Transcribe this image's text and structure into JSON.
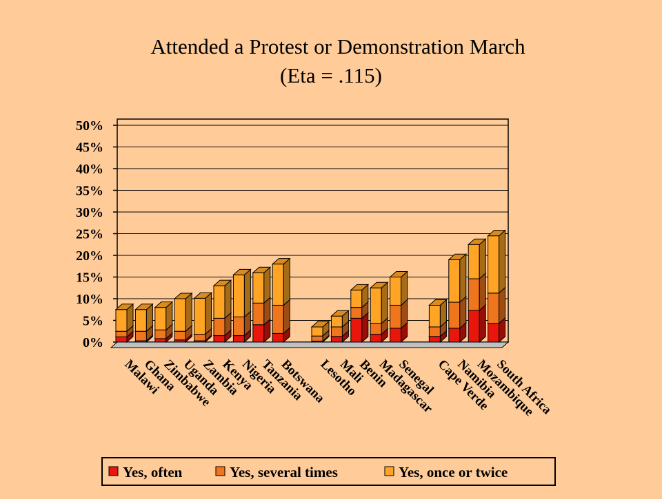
{
  "chart_data": {
    "type": "bar3d_stacked",
    "title": "Attended a Protest or Demonstration March",
    "subtitle": "(Eta = .115)",
    "categories": [
      "Malawi",
      "Ghana",
      "Zimbabwe",
      "Uganda",
      "Zambia",
      "Kenya",
      "Nigeria",
      "Tanzania",
      "Botswana",
      null,
      "Lesotho",
      "Mali",
      "Benin",
      "Madagascar",
      "Senegal",
      null,
      "Cape Verde",
      "Namibia",
      "Mozambique",
      "South Africa"
    ],
    "series": [
      {
        "name": "Yes, often",
        "color": "#e8160c",
        "values": [
          1.2,
          0.3,
          0.8,
          0.5,
          0.3,
          1.5,
          1.5,
          4,
          2,
          null,
          0.2,
          1.3,
          5.5,
          1.8,
          3.2,
          null,
          1.3,
          3.2,
          7.3,
          4.3
        ]
      },
      {
        "name": "Yes, several times",
        "color": "#f0761e",
        "values": [
          1.3,
          2.2,
          2,
          2,
          1.5,
          4,
          4.3,
          5,
          6.5,
          null,
          1.2,
          2.2,
          2.5,
          2.5,
          5.3,
          null,
          2.2,
          6,
          7.3,
          7
        ]
      },
      {
        "name": "Yes, once or twice",
        "color": "#ffa424",
        "values": [
          5,
          5,
          5.2,
          7.5,
          8.3,
          7.5,
          9.7,
          7,
          9.5,
          null,
          2.1,
          2.5,
          4,
          8.2,
          6.5,
          null,
          5,
          9.8,
          7.9,
          13.2
        ]
      }
    ],
    "ylim": [
      0,
      50
    ],
    "yticks": [
      {
        "value": 0,
        "label": "0%"
      },
      {
        "value": 5,
        "label": "5%"
      },
      {
        "value": 10,
        "label": "10%"
      },
      {
        "value": 15,
        "label": "15%"
      },
      {
        "value": 20,
        "label": "20%"
      },
      {
        "value": 25,
        "label": "25%"
      },
      {
        "value": 30,
        "label": "30%"
      },
      {
        "value": 35,
        "label": "35%"
      },
      {
        "value": 40,
        "label": "40%"
      },
      {
        "value": 45,
        "label": "45%"
      },
      {
        "value": 50,
        "label": "50%"
      }
    ],
    "grid": true
  }
}
